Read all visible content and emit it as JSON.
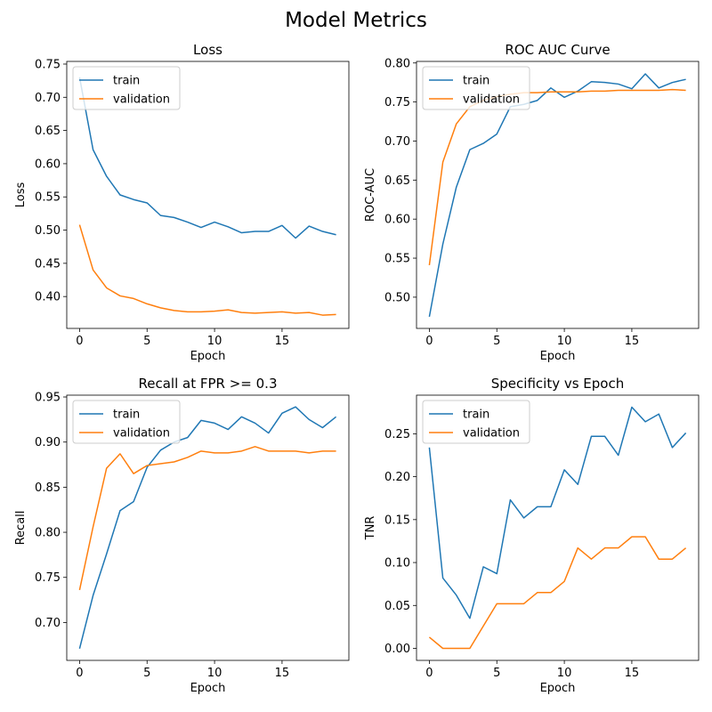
{
  "figure_title": "Model Metrics",
  "colors": {
    "train": "#1f77b4",
    "validation": "#ff7f0e"
  },
  "chart_data": [
    {
      "type": "line",
      "title": "Loss",
      "xlabel": "Epoch",
      "ylabel": "Loss",
      "x": [
        0,
        1,
        2,
        3,
        4,
        5,
        6,
        7,
        8,
        9,
        10,
        11,
        12,
        13,
        14,
        15,
        16,
        17,
        18,
        19
      ],
      "xlim": [
        -0.95,
        19.95
      ],
      "ylim": [
        0.352,
        0.754
      ],
      "xticks": [
        0,
        5,
        10,
        15
      ],
      "xtick_labels": [
        "0",
        "5",
        "10",
        "15"
      ],
      "yticks": [
        0.4,
        0.45,
        0.5,
        0.55,
        0.6,
        0.65,
        0.7,
        0.75
      ],
      "ytick_labels": [
        "0.40",
        "0.45",
        "0.50",
        "0.55",
        "0.60",
        "0.65",
        "0.70",
        "0.75"
      ],
      "legend": "top-left",
      "grid": false,
      "series": [
        {
          "name": "train",
          "values": [
            0.73,
            0.621,
            0.581,
            0.553,
            0.546,
            0.541,
            0.522,
            0.519,
            0.512,
            0.504,
            0.512,
            0.505,
            0.496,
            0.498,
            0.498,
            0.507,
            0.488,
            0.506,
            0.498,
            0.493
          ]
        },
        {
          "name": "validation",
          "values": [
            0.508,
            0.44,
            0.413,
            0.401,
            0.397,
            0.389,
            0.383,
            0.379,
            0.377,
            0.377,
            0.378,
            0.38,
            0.376,
            0.375,
            0.376,
            0.377,
            0.375,
            0.376,
            0.372,
            0.373
          ]
        }
      ]
    },
    {
      "type": "line",
      "title": "ROC AUC Curve",
      "xlabel": "Epoch",
      "ylabel": "ROC-AUC",
      "x": [
        0,
        1,
        2,
        3,
        4,
        5,
        6,
        7,
        8,
        9,
        10,
        11,
        12,
        13,
        14,
        15,
        16,
        17,
        18,
        19
      ],
      "xlim": [
        -0.95,
        19.95
      ],
      "ylim": [
        0.46,
        0.802
      ],
      "xticks": [
        0,
        5,
        10,
        15
      ],
      "xtick_labels": [
        "0",
        "5",
        "10",
        "15"
      ],
      "yticks": [
        0.5,
        0.55,
        0.6,
        0.65,
        0.7,
        0.75,
        0.8
      ],
      "ytick_labels": [
        "0.50",
        "0.55",
        "0.60",
        "0.65",
        "0.70",
        "0.75",
        "0.80"
      ],
      "legend": "top-left",
      "grid": false,
      "series": [
        {
          "name": "train",
          "values": [
            0.475,
            0.568,
            0.641,
            0.689,
            0.697,
            0.709,
            0.744,
            0.747,
            0.752,
            0.768,
            0.756,
            0.764,
            0.776,
            0.775,
            0.773,
            0.767,
            0.786,
            0.768,
            0.775,
            0.779
          ]
        },
        {
          "name": "validation",
          "values": [
            0.541,
            0.673,
            0.722,
            0.744,
            0.752,
            0.757,
            0.76,
            0.762,
            0.762,
            0.763,
            0.763,
            0.763,
            0.764,
            0.764,
            0.765,
            0.765,
            0.765,
            0.765,
            0.766,
            0.765
          ]
        }
      ]
    },
    {
      "type": "line",
      "title": "Recall at FPR >= 0.3",
      "xlabel": "Epoch",
      "ylabel": "Recall",
      "x": [
        0,
        1,
        2,
        3,
        4,
        5,
        6,
        7,
        8,
        9,
        10,
        11,
        12,
        13,
        14,
        15,
        16,
        17,
        18,
        19
      ],
      "xlim": [
        -0.95,
        19.95
      ],
      "ylim": [
        0.658,
        0.952
      ],
      "xticks": [
        0,
        5,
        10,
        15
      ],
      "xtick_labels": [
        "0",
        "5",
        "10",
        "15"
      ],
      "yticks": [
        0.7,
        0.75,
        0.8,
        0.85,
        0.9,
        0.95
      ],
      "ytick_labels": [
        "0.70",
        "0.75",
        "0.80",
        "0.85",
        "0.90",
        "0.95"
      ],
      "legend": "top-left",
      "grid": false,
      "series": [
        {
          "name": "train",
          "values": [
            0.671,
            0.73,
            0.776,
            0.824,
            0.834,
            0.872,
            0.891,
            0.9,
            0.905,
            0.924,
            0.921,
            0.914,
            0.928,
            0.921,
            0.91,
            0.932,
            0.939,
            0.925,
            0.916,
            0.928
          ]
        },
        {
          "name": "validation",
          "values": [
            0.736,
            0.806,
            0.871,
            0.887,
            0.865,
            0.874,
            0.876,
            0.878,
            0.883,
            0.89,
            0.888,
            0.888,
            0.89,
            0.895,
            0.89,
            0.89,
            0.89,
            0.888,
            0.89,
            0.89
          ]
        }
      ]
    },
    {
      "type": "line",
      "title": "Specificity vs Epoch",
      "xlabel": "Epoch",
      "ylabel": "TNR",
      "x": [
        0,
        1,
        2,
        3,
        4,
        5,
        6,
        7,
        8,
        9,
        10,
        11,
        12,
        13,
        14,
        15,
        16,
        17,
        18,
        19
      ],
      "xlim": [
        -0.95,
        19.95
      ],
      "ylim": [
        -0.014,
        0.295
      ],
      "xticks": [
        0,
        5,
        10,
        15
      ],
      "xtick_labels": [
        "0",
        "5",
        "10",
        "15"
      ],
      "yticks": [
        0.0,
        0.05,
        0.1,
        0.15,
        0.2,
        0.25
      ],
      "ytick_labels": [
        "0.00",
        "0.05",
        "0.10",
        "0.15",
        "0.20",
        "0.25"
      ],
      "legend": "top-left",
      "grid": false,
      "series": [
        {
          "name": "train",
          "values": [
            0.234,
            0.082,
            0.062,
            0.035,
            0.095,
            0.087,
            0.173,
            0.152,
            0.165,
            0.165,
            0.208,
            0.191,
            0.247,
            0.247,
            0.225,
            0.281,
            0.264,
            0.273,
            0.234,
            0.251
          ]
        },
        {
          "name": "validation",
          "values": [
            0.013,
            0.0,
            0.0,
            0.0,
            0.026,
            0.052,
            0.052,
            0.052,
            0.065,
            0.065,
            0.078,
            0.117,
            0.104,
            0.117,
            0.117,
            0.13,
            0.13,
            0.104,
            0.104,
            0.117
          ]
        }
      ]
    }
  ]
}
